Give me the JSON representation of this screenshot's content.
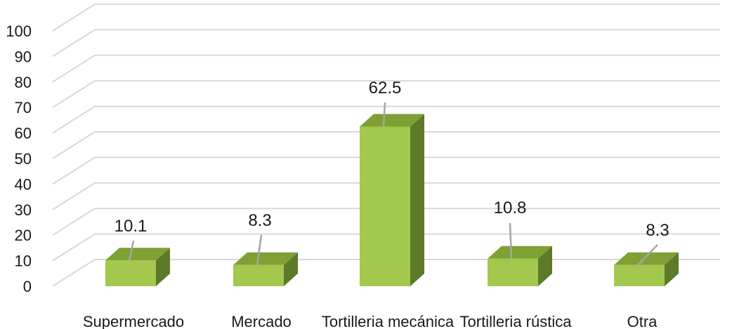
{
  "chart_data": {
    "type": "bar",
    "categories": [
      "Supermercado",
      "Mercado",
      "Tortilleria mecánica",
      "Tortilleria rústica",
      "Otra"
    ],
    "values": [
      10.1,
      8.3,
      62.5,
      10.8,
      8.3
    ],
    "data_labels": [
      "10.1",
      "8.3",
      "62.5",
      "10.8",
      "8.3"
    ],
    "y_ticks": [
      "0",
      "10",
      "20",
      "30",
      "40",
      "50",
      "60",
      "70",
      "80",
      "90",
      "100"
    ],
    "ylim": [
      0,
      100
    ],
    "grid": true,
    "style": "3d-column",
    "colors": {
      "bar_front": "#a3c84e",
      "bar_side": "#5c7a2a",
      "bar_top": "#7ea034",
      "grid": "#d9d9d9",
      "leader_line": "#a6a6a6"
    }
  }
}
